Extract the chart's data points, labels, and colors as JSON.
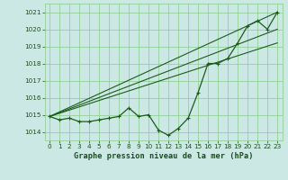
{
  "xlabel": "Graphe pression niveau de la mer (hPa)",
  "x": [
    0,
    1,
    2,
    3,
    4,
    5,
    6,
    7,
    8,
    9,
    10,
    11,
    12,
    13,
    14,
    15,
    16,
    17,
    18,
    19,
    20,
    21,
    22,
    23
  ],
  "line1": [
    1014.9,
    1014.7,
    1014.8,
    1014.6,
    1014.6,
    1014.7,
    1014.8,
    1014.9,
    1015.4,
    1014.9,
    1015.0,
    1014.1,
    1013.8,
    1014.2,
    1014.8,
    1016.3,
    1018.0,
    1018.0,
    1018.3,
    1019.2,
    1020.2,
    1020.5,
    1020.0,
    1021.0
  ],
  "ref_lines": [
    [
      1014.9,
      1021.0
    ],
    [
      1014.9,
      1020.0
    ],
    [
      1014.9,
      1019.2
    ]
  ],
  "bg_color": "#cce8e4",
  "line_color": "#1a5c1a",
  "grid_color": "#88cc88",
  "text_color": "#1a4d1a",
  "ylim": [
    1013.5,
    1021.5
  ],
  "xlim": [
    -0.5,
    23.5
  ],
  "yticks": [
    1014,
    1015,
    1016,
    1017,
    1018,
    1019,
    1020,
    1021
  ],
  "xticks": [
    0,
    1,
    2,
    3,
    4,
    5,
    6,
    7,
    8,
    9,
    10,
    11,
    12,
    13,
    14,
    15,
    16,
    17,
    18,
    19,
    20,
    21,
    22,
    23
  ]
}
